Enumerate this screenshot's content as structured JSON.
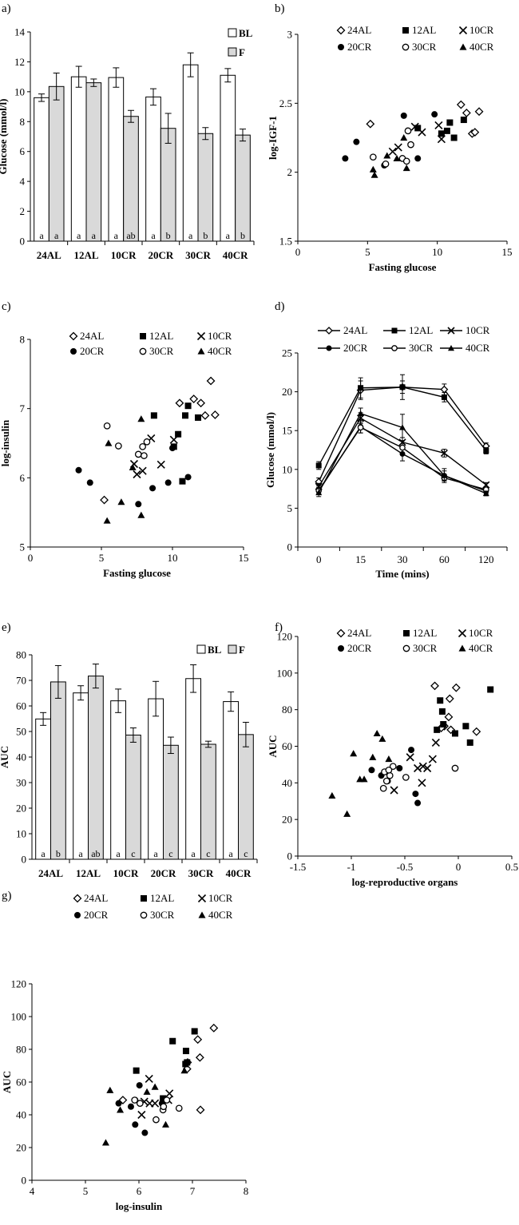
{
  "panel_labels": [
    "a)",
    "b)",
    "c)",
    "d)",
    "e)",
    "f)",
    "g)"
  ],
  "chart_data": [
    {
      "id": "a",
      "type": "bar",
      "panel_label": "a)",
      "ylabel": "Glucose (mmol/l)",
      "xlabel": "",
      "ylim": [
        0,
        14
      ],
      "yticks": [
        0,
        2,
        4,
        6,
        8,
        10,
        12,
        14
      ],
      "categories": [
        "24AL",
        "12AL",
        "10CR",
        "20CR",
        "30CR",
        "40CR"
      ],
      "legend": [
        "BL",
        "F"
      ],
      "series": [
        {
          "name": "BL",
          "values": [
            9.6,
            11.0,
            10.95,
            9.65,
            11.8,
            11.1
          ],
          "errors": [
            0.25,
            0.7,
            0.65,
            0.55,
            0.8,
            0.45
          ],
          "labels": [
            "a",
            "a",
            "a",
            "a",
            "a",
            "a"
          ]
        },
        {
          "name": "F",
          "values": [
            10.35,
            10.6,
            8.35,
            7.55,
            7.2,
            7.1
          ],
          "errors": [
            0.9,
            0.25,
            0.4,
            1.0,
            0.4,
            0.4
          ],
          "labels": [
            "a",
            "a",
            "ab",
            "b",
            "b",
            "b"
          ]
        }
      ]
    },
    {
      "id": "b",
      "type": "scatter",
      "panel_label": "b)",
      "xlabel": "Fasting glucose",
      "ylabel": "log-IGF-1",
      "xlim": [
        0,
        15
      ],
      "ylim": [
        1.5,
        3
      ],
      "xticks": [
        0,
        5,
        10,
        15
      ],
      "yticks": [
        1.5,
        2,
        2.5,
        3
      ],
      "series": [
        {
          "name": "24AL",
          "marker": "diamond",
          "x": [
            5.2,
            11.7,
            12.1,
            12.5,
            13.0,
            12.7
          ],
          "y": [
            2.35,
            2.49,
            2.43,
            2.28,
            2.44,
            2.29
          ]
        },
        {
          "name": "12AL",
          "marker": "square",
          "x": [
            8.6,
            10.3,
            10.7,
            10.9,
            11.2,
            11.9
          ],
          "y": [
            2.32,
            2.28,
            2.3,
            2.36,
            2.25,
            2.38
          ]
        },
        {
          "name": "10CR",
          "marker": "x",
          "x": [
            6.8,
            7.2,
            8.4,
            8.9,
            10.1,
            10.3
          ],
          "y": [
            2.15,
            2.18,
            2.33,
            2.29,
            2.34,
            2.24
          ]
        },
        {
          "name": "20CR",
          "marker": "circle",
          "x": [
            3.4,
            4.2,
            6.2,
            7.6,
            8.6,
            9.8
          ],
          "y": [
            2.1,
            2.22,
            2.05,
            2.41,
            2.1,
            2.42
          ]
        },
        {
          "name": "30CR",
          "marker": "circle-open",
          "x": [
            5.4,
            6.3,
            7.5,
            7.9,
            8.1,
            7.8
          ],
          "y": [
            2.11,
            2.06,
            2.1,
            2.3,
            2.2,
            2.08
          ]
        },
        {
          "name": "40CR",
          "marker": "triangle",
          "x": [
            5.4,
            5.5,
            6.4,
            7.6,
            7.8,
            7.1
          ],
          "y": [
            2.02,
            1.98,
            2.12,
            2.25,
            2.03,
            2.1
          ]
        }
      ]
    },
    {
      "id": "c",
      "type": "scatter",
      "panel_label": "c)",
      "xlabel": "Fasting glucose",
      "ylabel": "log-insulin",
      "xlim": [
        0,
        15
      ],
      "ylim": [
        5,
        8
      ],
      "xticks": [
        0,
        5,
        10,
        15
      ],
      "yticks": [
        5,
        6,
        7,
        8
      ],
      "series": [
        {
          "name": "24AL",
          "marker": "diamond",
          "x": [
            5.2,
            10.5,
            11.5,
            12.0,
            12.3,
            12.7,
            13.0
          ],
          "y": [
            5.68,
            7.08,
            7.14,
            7.08,
            6.9,
            7.4,
            6.91
          ]
        },
        {
          "name": "12AL",
          "marker": "square",
          "x": [
            8.7,
            10.1,
            10.4,
            10.7,
            10.9,
            11.1,
            11.8
          ],
          "y": [
            6.9,
            6.45,
            6.63,
            5.95,
            6.9,
            7.04,
            6.87
          ]
        },
        {
          "name": "10CR",
          "marker": "x",
          "x": [
            7.3,
            7.5,
            7.9,
            8.5,
            9.2,
            10.1
          ],
          "y": [
            6.2,
            6.05,
            6.1,
            6.57,
            6.19,
            6.55
          ]
        },
        {
          "name": "20CR",
          "marker": "circle",
          "x": [
            3.4,
            4.2,
            7.6,
            8.6,
            9.7,
            10.0,
            11.1
          ],
          "y": [
            6.11,
            5.93,
            5.62,
            5.85,
            5.93,
            6.43,
            6.01
          ]
        },
        {
          "name": "30CR",
          "marker": "circle-open",
          "x": [
            5.4,
            6.2,
            7.6,
            7.9,
            8.0,
            8.2
          ],
          "y": [
            6.75,
            6.46,
            6.34,
            6.45,
            6.32,
            6.52
          ]
        },
        {
          "name": "40CR",
          "marker": "triangle",
          "x": [
            5.5,
            5.4,
            6.4,
            7.2,
            7.8,
            7.8
          ],
          "y": [
            6.5,
            5.38,
            5.65,
            6.15,
            6.85,
            5.46
          ]
        }
      ]
    },
    {
      "id": "d",
      "type": "line",
      "panel_label": "d)",
      "xlabel": "Time (mins)",
      "ylabel": "Glucose (mmol/l)",
      "ylim": [
        0,
        25
      ],
      "yticks": [
        0,
        5,
        10,
        15,
        20,
        25
      ],
      "categories": [
        "0",
        "15",
        "30",
        "60",
        "120"
      ],
      "series": [
        {
          "name": "24AL",
          "marker": "diamond",
          "values": [
            8.4,
            20.2,
            20.6,
            20.3,
            13.0
          ],
          "errors": [
            0.5,
            1.2,
            0.8,
            0.7,
            0.4
          ]
        },
        {
          "name": "12AL",
          "marker": "square",
          "values": [
            10.5,
            20.5,
            20.6,
            19.3,
            12.4
          ],
          "errors": [
            0.5,
            1.3,
            1.6,
            0.6,
            0.4
          ]
        },
        {
          "name": "10CR",
          "marker": "x",
          "values": [
            7.8,
            16.6,
            13.5,
            12.1,
            8.0
          ],
          "errors": [
            0.4,
            0.7,
            0.6,
            0.5,
            0.3
          ]
        },
        {
          "name": "20CR",
          "marker": "circle",
          "values": [
            7.2,
            15.5,
            12.0,
            9.2,
            7.2
          ],
          "errors": [
            0.4,
            0.8,
            0.9,
            0.6,
            0.3
          ]
        },
        {
          "name": "30CR",
          "marker": "circle-open",
          "values": [
            7.3,
            15.4,
            12.8,
            8.9,
            7.4
          ],
          "errors": [
            0.4,
            0.7,
            0.9,
            0.4,
            0.3
          ]
        },
        {
          "name": "40CR",
          "marker": "triangle",
          "values": [
            7.0,
            17.2,
            15.4,
            9.2,
            6.9
          ],
          "errors": [
            0.5,
            0.7,
            1.7,
            0.9,
            0.3
          ]
        }
      ]
    },
    {
      "id": "e",
      "type": "bar",
      "panel_label": "e)",
      "ylabel": "AUC",
      "xlabel": "",
      "ylim": [
        0,
        80
      ],
      "yticks": [
        0,
        10,
        20,
        30,
        40,
        50,
        60,
        70,
        80
      ],
      "categories": [
        "24AL",
        "12AL",
        "10CR",
        "20CR",
        "30CR",
        "40CR"
      ],
      "legend": [
        "BL",
        "F"
      ],
      "series": [
        {
          "name": "BL",
          "values": [
            54.9,
            65.1,
            62.0,
            62.8,
            70.7,
            61.7
          ],
          "errors": [
            2.5,
            2.8,
            4.6,
            6.8,
            5.4,
            3.8
          ],
          "labels": [
            "a",
            "a",
            "a",
            "a",
            "a",
            "a"
          ]
        },
        {
          "name": "F",
          "values": [
            69.4,
            71.7,
            48.6,
            44.6,
            45.0,
            48.8
          ],
          "errors": [
            6.4,
            4.7,
            2.8,
            3.2,
            1.2,
            4.8
          ],
          "labels": [
            "b",
            "ab",
            "c",
            "c",
            "c",
            "c"
          ]
        }
      ]
    },
    {
      "id": "f",
      "type": "scatter",
      "panel_label": "f)",
      "xlabel": "log-reproductive organs",
      "ylabel": "AUC",
      "xlim": [
        -1.5,
        0.5
      ],
      "ylim": [
        0,
        120
      ],
      "xticks": [
        -1.5,
        -1,
        -0.5,
        0,
        0.5
      ],
      "yticks": [
        0,
        20,
        40,
        60,
        80,
        100,
        120
      ],
      "series": [
        {
          "name": "24AL",
          "marker": "diamond",
          "x": [
            -0.22,
            -0.13,
            -0.08,
            -0.02,
            -0.09,
            -0.16,
            -0.07,
            0.17
          ],
          "y": [
            93,
            71,
            86,
            92,
            76,
            70,
            69,
            68
          ]
        },
        {
          "name": "12AL",
          "marker": "square",
          "x": [
            -0.17,
            -0.15,
            -0.14,
            -0.03,
            0.07,
            0.11,
            0.3,
            -0.2
          ],
          "y": [
            85,
            79,
            72,
            67,
            71,
            62,
            91,
            69
          ]
        },
        {
          "name": "10CR",
          "marker": "x",
          "x": [
            -0.45,
            -0.38,
            -0.34,
            -0.29,
            -0.24,
            -0.21,
            -0.6,
            -0.33
          ],
          "y": [
            54,
            48,
            40,
            48,
            53,
            62,
            36,
            49
          ]
        },
        {
          "name": "20CR",
          "marker": "circle",
          "x": [
            -0.81,
            -0.72,
            -0.66,
            -0.44,
            -0.4,
            -0.38,
            -0.55
          ],
          "y": [
            47,
            44,
            41,
            58,
            34,
            29,
            48
          ]
        },
        {
          "name": "30CR",
          "marker": "circle-open",
          "x": [
            -0.7,
            -0.64,
            -0.61,
            -0.69,
            -0.49,
            -0.65,
            -0.03,
            -0.67
          ],
          "y": [
            37,
            44,
            49,
            46,
            43,
            47,
            48,
            41
          ]
        },
        {
          "name": "40CR",
          "marker": "triangle",
          "x": [
            -1.18,
            -1.04,
            -0.98,
            -0.88,
            -0.8,
            -0.76,
            -0.71,
            -0.65,
            -0.92
          ],
          "y": [
            33,
            23,
            56,
            42,
            54,
            67,
            64,
            53,
            42
          ]
        }
      ]
    },
    {
      "id": "g",
      "type": "scatter",
      "panel_label": "g)",
      "xlabel": "log-insulin",
      "ylabel": "AUC",
      "xlim": [
        4,
        8
      ],
      "ylim": [
        0,
        120
      ],
      "xticks": [
        4,
        5,
        6,
        7,
        8
      ],
      "yticks": [
        0,
        20,
        40,
        60,
        80,
        100,
        120
      ],
      "series": [
        {
          "name": "24AL",
          "marker": "diamond",
          "x": [
            5.7,
            6.9,
            7.1,
            7.14,
            7.4,
            7.15,
            6.91
          ],
          "y": [
            49,
            68,
            86,
            75,
            93,
            43,
            72
          ]
        },
        {
          "name": "12AL",
          "marker": "square",
          "x": [
            5.95,
            6.63,
            6.88,
            6.9,
            7.04,
            6.45,
            6.87
          ],
          "y": [
            67,
            85,
            79,
            72,
            91,
            50,
            71
          ]
        },
        {
          "name": "10CR",
          "marker": "x",
          "x": [
            6.05,
            6.19,
            6.1,
            6.2,
            6.57,
            6.55,
            6.3
          ],
          "y": [
            40,
            62,
            48,
            47,
            53,
            49,
            47
          ]
        },
        {
          "name": "20CR",
          "marker": "circle",
          "x": [
            5.62,
            5.85,
            5.93,
            6.01,
            6.11,
            6.43,
            5.93
          ],
          "y": [
            47,
            45,
            34,
            58,
            29,
            47,
            49
          ]
        },
        {
          "name": "30CR",
          "marker": "circle-open",
          "x": [
            5.92,
            6.02,
            6.32,
            6.45,
            6.46,
            6.75,
            6.52
          ],
          "y": [
            49,
            47,
            37,
            43,
            45,
            44,
            49
          ]
        },
        {
          "name": "40CR",
          "marker": "triangle",
          "x": [
            5.38,
            5.46,
            5.65,
            6.15,
            6.5,
            6.85,
            6.3
          ],
          "y": [
            23,
            55,
            43,
            54,
            34,
            67,
            57
          ]
        }
      ]
    }
  ]
}
